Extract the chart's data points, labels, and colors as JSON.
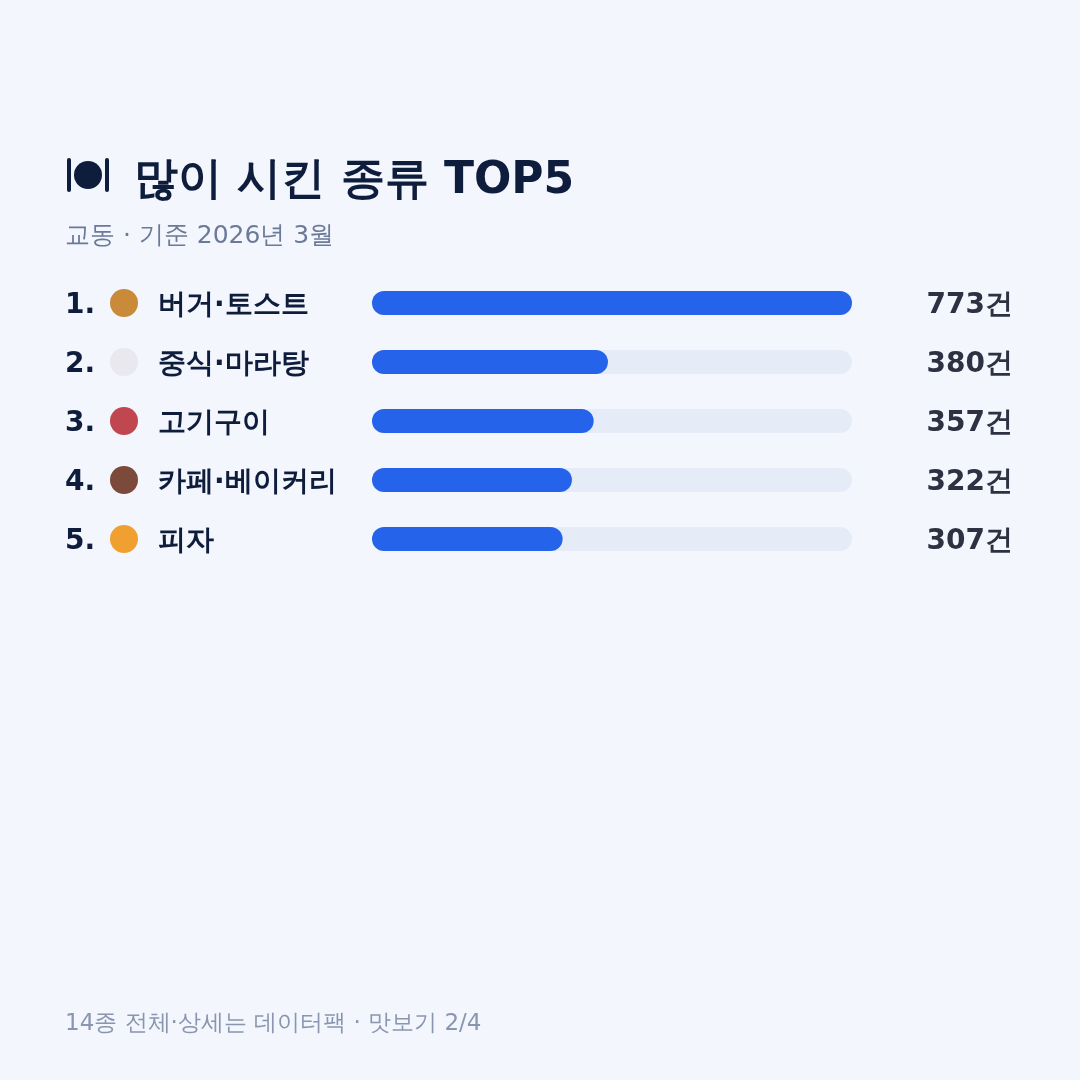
{
  "chart_data": {
    "type": "bar",
    "orientation": "horizontal",
    "title": "많이 시킨 종류 TOP5",
    "subtitle": "교동 · 기준 2026년 3월",
    "categories": [
      "1. 버거·토스트",
      "2. 중식·마라탕",
      "3. 고기구이",
      "4. 카페·베이커리",
      "5. 피자"
    ],
    "values": [
      773,
      380,
      357,
      322,
      307
    ],
    "value_labels": [
      "773건",
      "380건",
      "357건",
      "322건",
      "307건"
    ],
    "color": "#2563eb",
    "annotations": [
      "14종 전체·상세는 데이터팩 · 맛보기 2/4"
    ]
  }
}
